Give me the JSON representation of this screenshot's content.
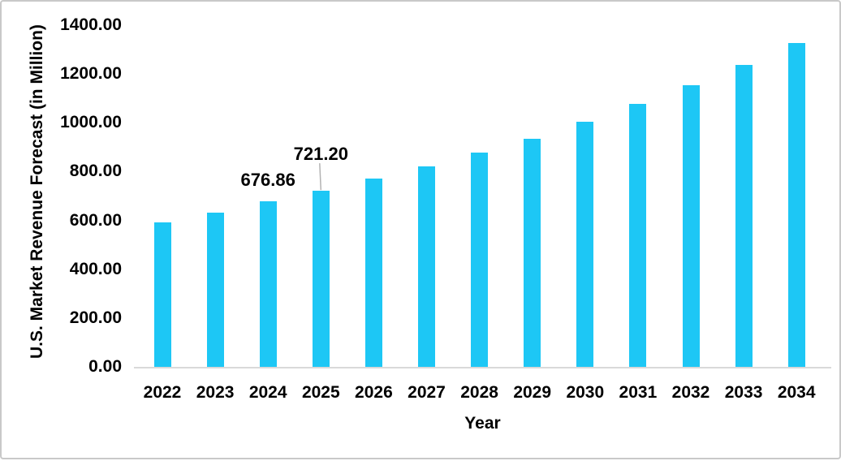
{
  "chart_data": {
    "type": "bar",
    "title": "",
    "xlabel": "Year",
    "ylabel": "U.S. Market Revenue Forecast (in Million)",
    "categories": [
      "2022",
      "2023",
      "2024",
      "2025",
      "2026",
      "2027",
      "2028",
      "2029",
      "2030",
      "2031",
      "2032",
      "2033",
      "2034"
    ],
    "values": [
      592,
      632,
      676.86,
      721.2,
      772,
      823,
      878,
      936,
      1003,
      1078,
      1155,
      1238,
      1328
    ],
    "ylim": [
      0,
      1400
    ],
    "ytick_labels": [
      "0.00",
      "200.00",
      "400.00",
      "600.00",
      "800.00",
      "1000.00",
      "1200.00",
      "1400.00"
    ],
    "data_labels": [
      {
        "category": "2024",
        "text": "676.86",
        "leader_line": false
      },
      {
        "category": "2025",
        "text": "721.20",
        "leader_line": true
      }
    ],
    "grid": false,
    "legend": false,
    "colors": {
      "bar": "#1dc7f5",
      "axis_line": "#d9d9d9",
      "leader_line": "#b3b3b3",
      "text": "#000000",
      "frame_border": "#c9c9c9",
      "background": "#ffffff"
    }
  }
}
